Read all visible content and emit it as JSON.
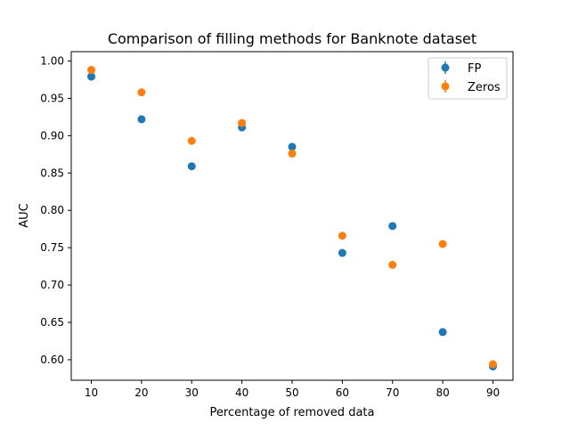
{
  "chart_data": {
    "type": "scatter",
    "title": "Comparison of filling methods for Banknote dataset",
    "xlabel": "Percentage of removed data",
    "ylabel": "AUC",
    "xlim": [
      6,
      94
    ],
    "ylim": [
      0.5725,
      1.0125
    ],
    "xticks": [
      10,
      20,
      30,
      40,
      50,
      60,
      70,
      80,
      90
    ],
    "yticks": [
      0.6,
      0.65,
      0.7,
      0.75,
      0.8,
      0.85,
      0.9,
      0.95,
      1.0
    ],
    "ytick_labels": [
      "0.60",
      "0.65",
      "0.70",
      "0.75",
      "0.80",
      "0.85",
      "0.90",
      "0.95",
      "1.00"
    ],
    "grid": false,
    "legend_position": "top-right",
    "x": [
      10,
      20,
      30,
      40,
      50,
      60,
      70,
      80,
      90
    ],
    "series": [
      {
        "name": "FP",
        "color": "#1f77b4",
        "values": [
          0.979,
          0.922,
          0.859,
          0.911,
          0.885,
          0.743,
          0.779,
          0.637,
          0.591
        ]
      },
      {
        "name": "Zeros",
        "color": "#ff7f0e",
        "values": [
          0.988,
          0.958,
          0.893,
          0.917,
          0.876,
          0.766,
          0.727,
          0.755,
          0.594
        ]
      }
    ]
  }
}
